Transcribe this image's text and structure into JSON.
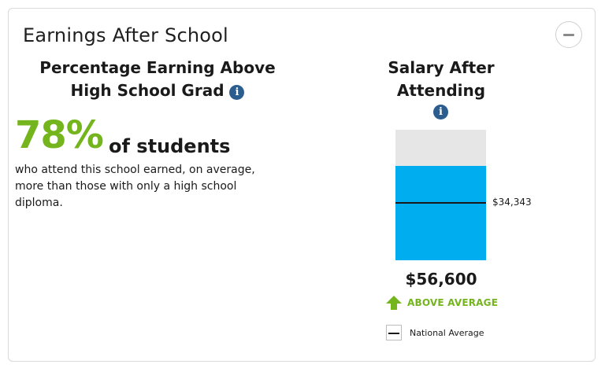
{
  "card": {
    "title": "Earnings After School",
    "collapse_icon": "minus-icon"
  },
  "percentage": {
    "heading": "Percentage Earning Above High School Grad",
    "info_icon": "info-icon",
    "value": "78%",
    "label": "of students",
    "description": "who attend this school earned, on average, more than those with only a high school diploma."
  },
  "salary": {
    "heading": "Salary After Attending",
    "info_icon": "info-icon",
    "value_text": "$56,600",
    "value": 56600,
    "national_average_text": "$34,343",
    "national_average": 34343,
    "bar_max": 78000,
    "indicator_icon": "arrow-up-icon",
    "indicator_text": "ABOVE AVERAGE",
    "legend_label": "National Average",
    "colors": {
      "fill": "#00adee",
      "track": "#e6e6e6",
      "accent": "#74b51e",
      "info": "#2c5d8f"
    }
  }
}
